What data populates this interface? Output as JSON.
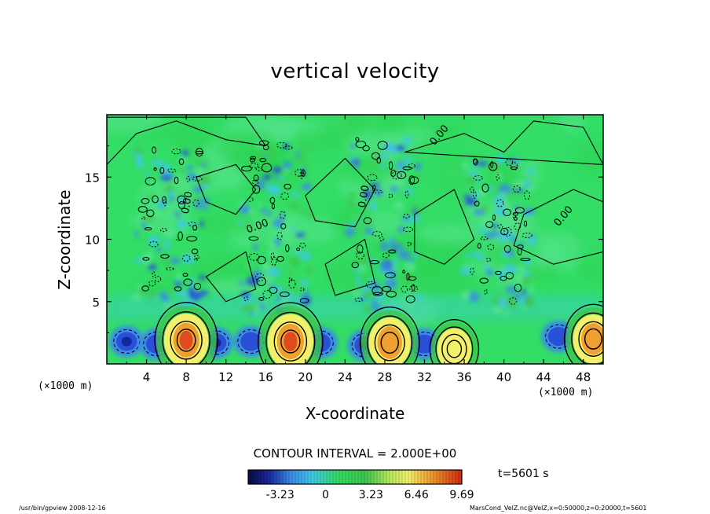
{
  "chart_data": {
    "type": "heatmap",
    "title": "vertical velocity",
    "xlabel": "X-coordinate",
    "ylabel": "Z-coordinate",
    "x_unit": "(×1000 m)",
    "xlim": [
      0,
      50
    ],
    "ylim": [
      0,
      20
    ],
    "x_ticks": [
      "4",
      "8",
      "12",
      "16",
      "20",
      "24",
      "28",
      "32",
      "36",
      "40",
      "44",
      "48"
    ],
    "y_ticks": [
      "5",
      "10",
      "15"
    ],
    "contour_label": "0.00",
    "contour_interval": "CONTOUR INTERVAL = 2.000E+00",
    "colorbar_ticks": [
      "-3.23",
      "0",
      "3.23",
      "6.46",
      "9.69"
    ],
    "time_label": "t=5601 s",
    "updrafts": [
      {
        "x": 8,
        "z": 1.9,
        "w": 9.0
      },
      {
        "x": 18.5,
        "z": 1.8,
        "w": 9.5
      },
      {
        "x": 28.5,
        "z": 1.7,
        "w": 8.0
      },
      {
        "x": 35,
        "z": 1.2,
        "w": 5.0
      },
      {
        "x": 49,
        "z": 2.0,
        "w": 7.5
      }
    ],
    "downdrafts": [
      {
        "x": 2,
        "z": 1.8,
        "w": -3.2
      },
      {
        "x": 5,
        "z": 1.6,
        "w": -2.8
      },
      {
        "x": 11,
        "z": 1.7,
        "w": -3.0
      },
      {
        "x": 14.5,
        "z": 1.8,
        "w": -2.5
      },
      {
        "x": 21.5,
        "z": 1.7,
        "w": -2.8
      },
      {
        "x": 26,
        "z": 1.5,
        "w": -3.2
      },
      {
        "x": 32,
        "z": 1.6,
        "w": -2.0
      },
      {
        "x": 45.5,
        "z": 2.2,
        "w": -2.7
      }
    ],
    "convective_towers": [
      {
        "x": 6.5,
        "z_top": 17.5
      },
      {
        "x": 17,
        "z_top": 18
      },
      {
        "x": 28,
        "z_top": 18.2
      },
      {
        "x": 39.5,
        "z_top": 16.5
      }
    ],
    "colors": {
      "background": "#33dd66",
      "neutral": "#55e38c",
      "cyan": "#40c8e6",
      "light_blue": "#3a8be6",
      "blue": "#2a50d8",
      "dark_blue": "#102a9c",
      "yellow": "#f2f06a",
      "orange": "#f0a030",
      "red": "#e04a20"
    }
  },
  "footer": {
    "left": "/usr/bin/gpview   2008-12-16",
    "right": "MarsCond_VelZ.nc@VelZ,x=0:50000,z=0:20000,t=5601"
  }
}
